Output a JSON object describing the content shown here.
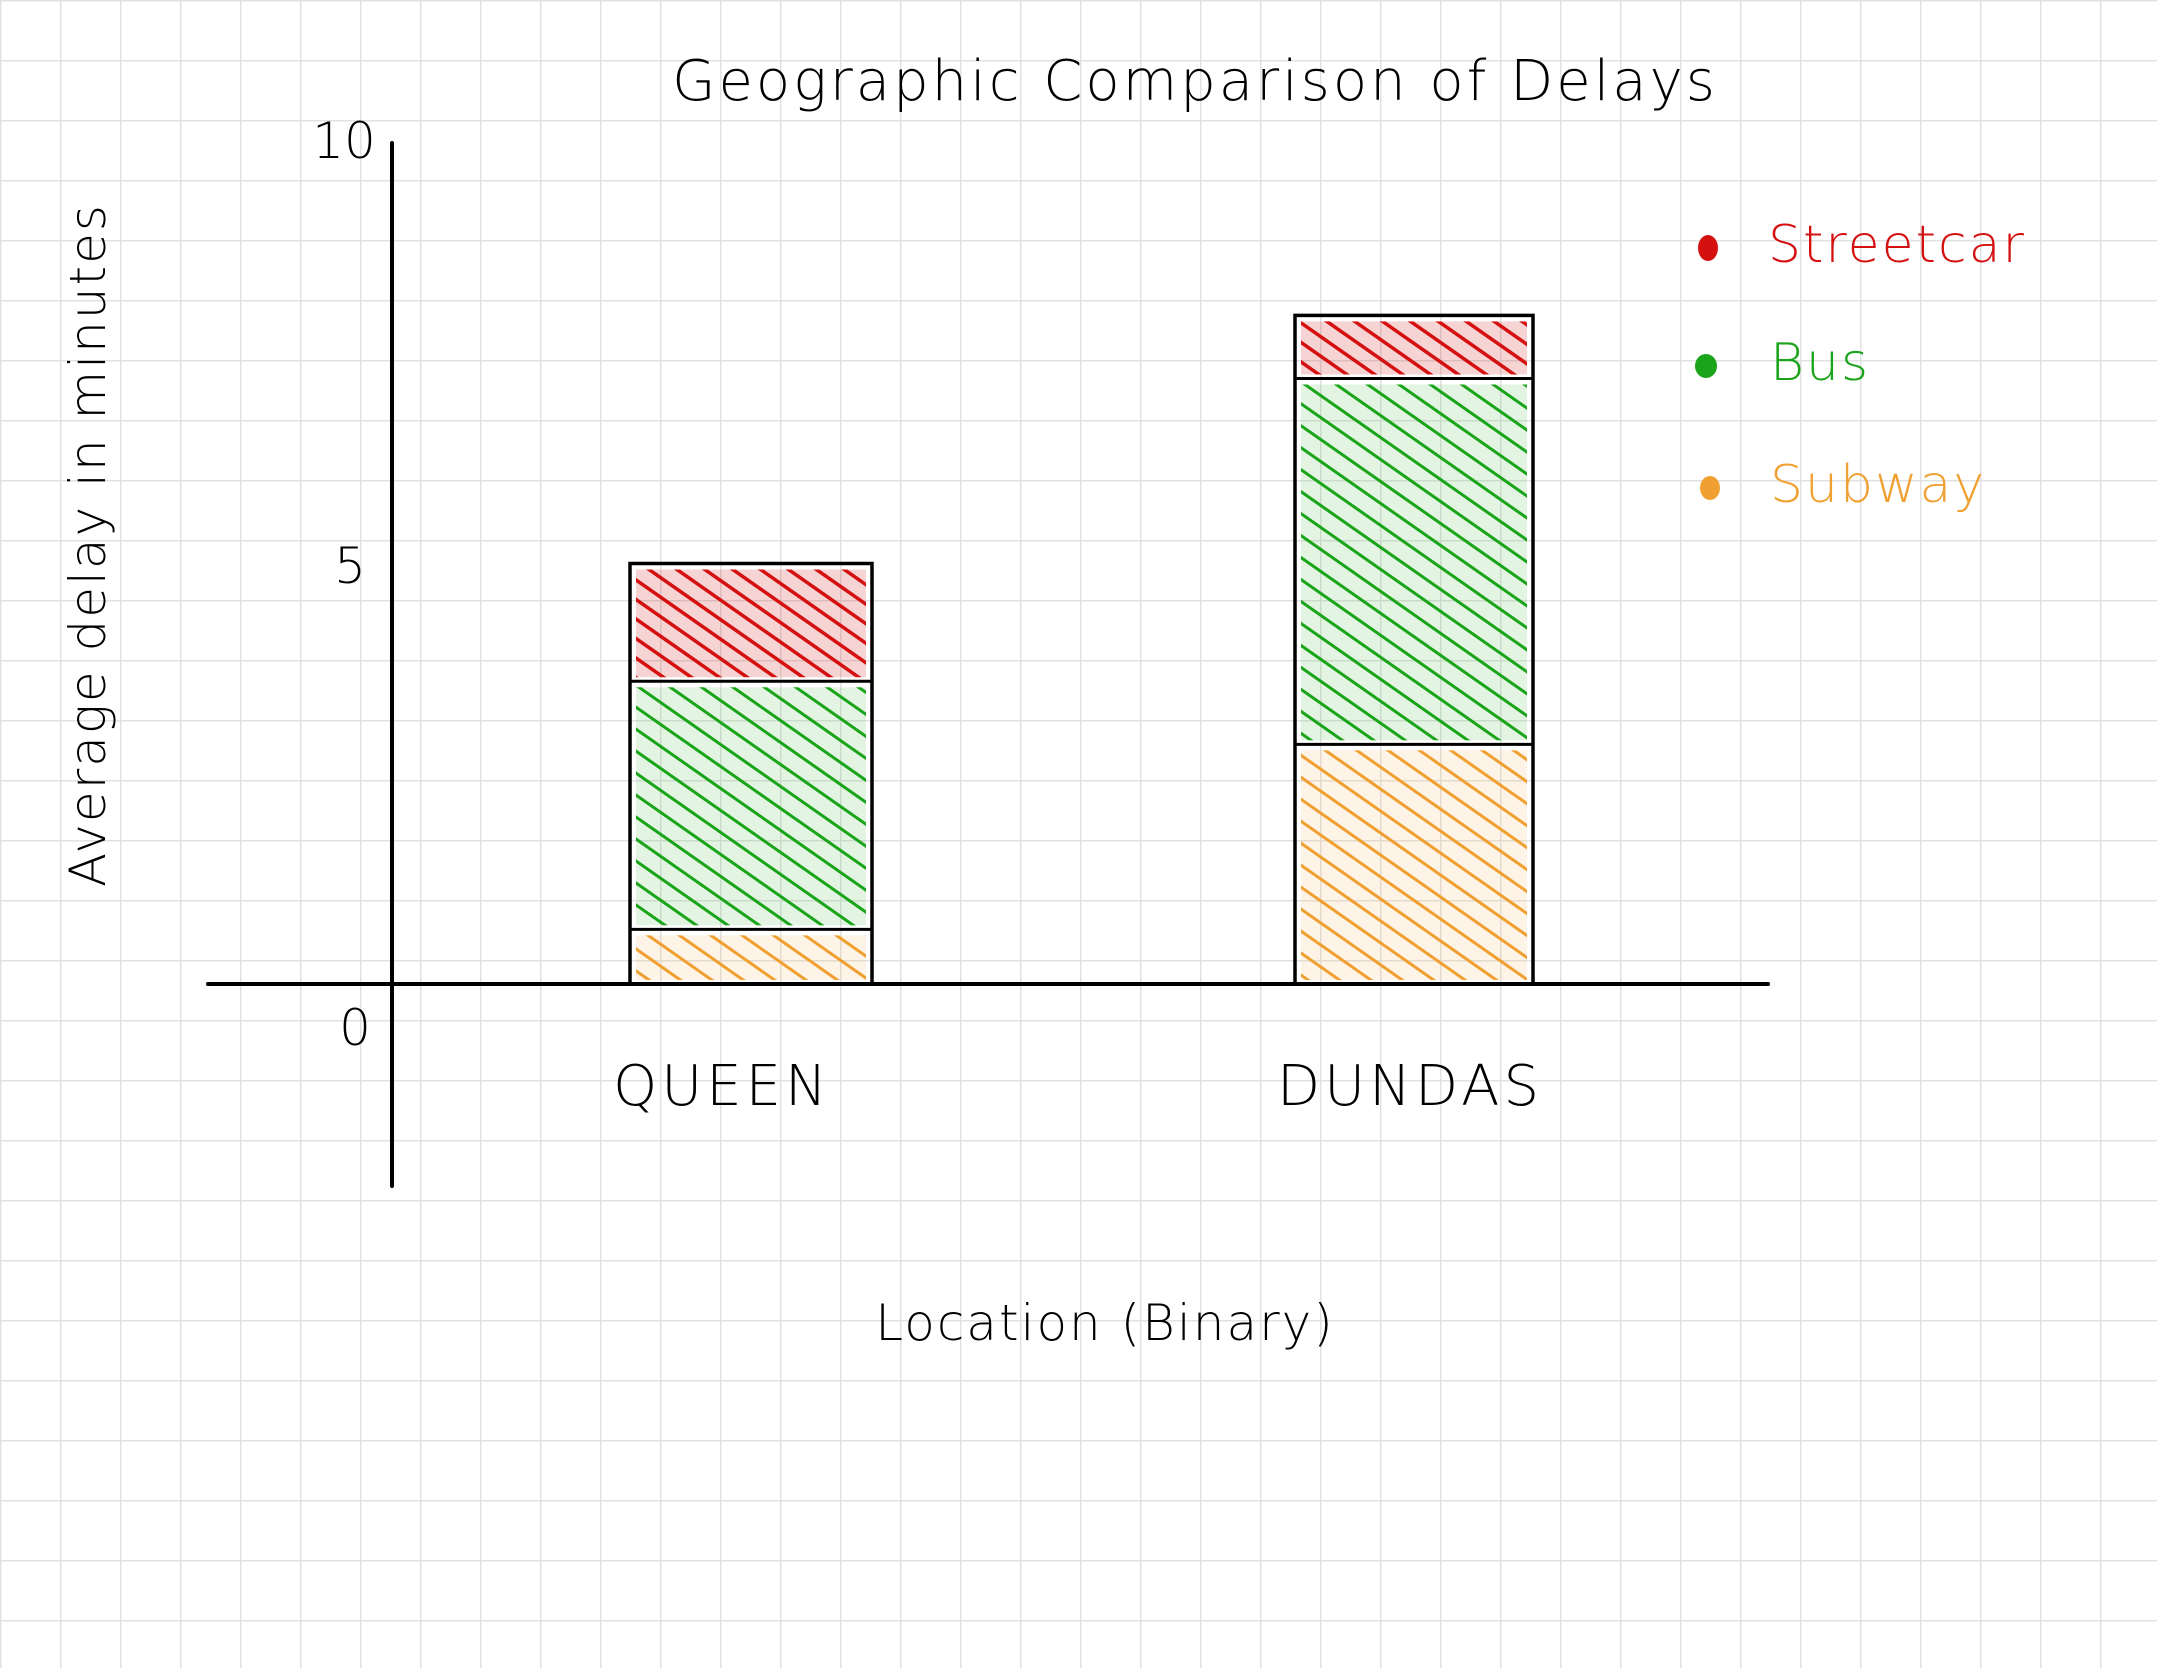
{
  "chart_data": {
    "type": "bar",
    "stacked": true,
    "title": "Geographic Comparison of Delays",
    "xlabel": "Location (Binary)",
    "ylabel": "Average delay in minutes",
    "ylim": [
      -2.4,
      10
    ],
    "yticks": [
      "10",
      "5",
      "0"
    ],
    "categories": [
      "QUEEN",
      "DUNDAS"
    ],
    "series": [
      {
        "name": "Subway",
        "color": "#f0a030",
        "values": [
          0.65,
          2.85
        ]
      },
      {
        "name": "Bus",
        "color": "#1aa41a",
        "values": [
          2.95,
          4.35
        ]
      },
      {
        "name": "Streetcar",
        "color": "#d41010",
        "values": [
          1.4,
          0.75
        ]
      }
    ],
    "totals": [
      5.0,
      7.95
    ],
    "legend_position": "top-right",
    "grid": true,
    "fill_style": "hatched"
  }
}
